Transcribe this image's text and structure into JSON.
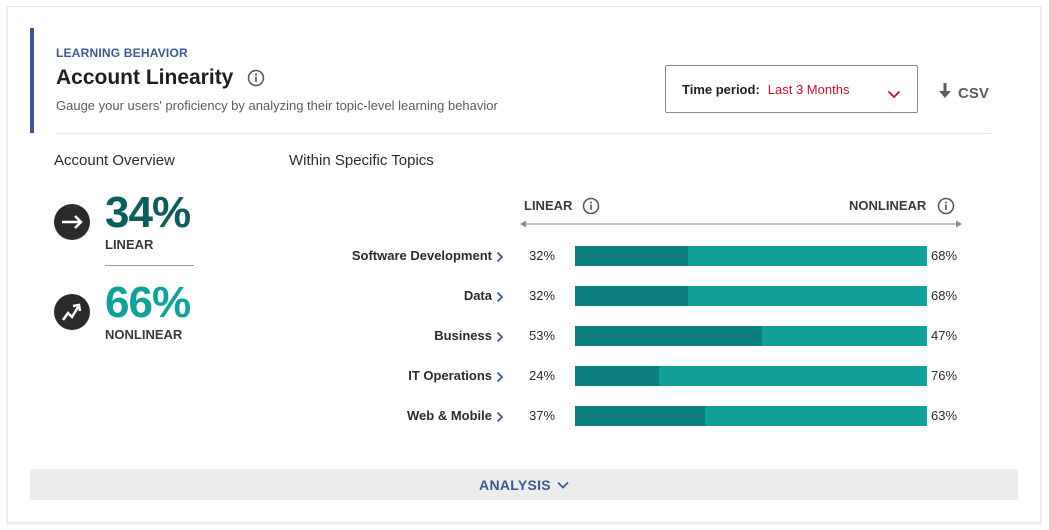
{
  "header": {
    "eyebrow": "LEARNING BEHAVIOR",
    "title": "Account Linearity",
    "subtitle": "Gauge your users' proficiency by analyzing their topic-level learning behavior"
  },
  "time_period": {
    "label": "Time period:",
    "value": "Last 3 Months"
  },
  "csv_label": "CSV",
  "overview": {
    "title": "Account Overview",
    "linear": {
      "pct": "34%",
      "label": "LINEAR"
    },
    "nonlinear": {
      "pct": "66%",
      "label": "NONLINEAR"
    }
  },
  "topics": {
    "title": "Within Specific Topics",
    "axis_left": "LINEAR",
    "axis_right": "NONLINEAR"
  },
  "colors": {
    "accent": "#3c5a8f",
    "linear_dark": "#0e7f7f",
    "nonlinear_teal": "#12a19a",
    "dropdown_value": "#c8102e"
  },
  "chart_data": {
    "type": "bar",
    "stacked": true,
    "orientation": "horizontal",
    "categories": [
      "Software Development",
      "Data",
      "Business",
      "IT Operations",
      "Web & Mobile"
    ],
    "series": [
      {
        "name": "LINEAR",
        "values": [
          32,
          32,
          53,
          24,
          37
        ]
      },
      {
        "name": "NONLINEAR",
        "values": [
          68,
          68,
          47,
          76,
          63
        ]
      }
    ],
    "xlim": [
      0,
      100
    ]
  },
  "analysis_label": "ANALYSIS"
}
